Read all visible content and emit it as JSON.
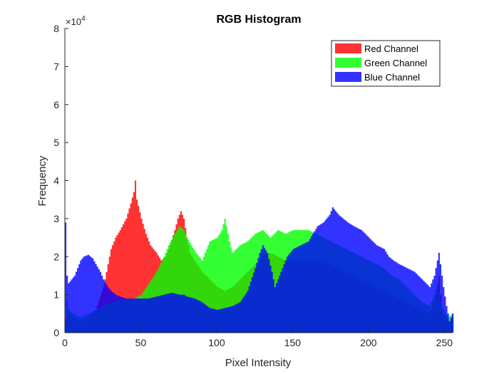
{
  "chart_data": {
    "type": "area",
    "title": "RGB Histogram",
    "xlabel": "Pixel Intensity",
    "ylabel": "Frequency",
    "xlim": [
      0,
      255
    ],
    "ylim": [
      0,
      80000
    ],
    "y_exponent_label": "×10^4",
    "y_exponent_base": "×10",
    "y_exponent_power": "4",
    "xticks": [
      0,
      50,
      100,
      150,
      200,
      250
    ],
    "yticks": [
      0,
      1,
      2,
      3,
      4,
      5,
      6,
      7,
      8
    ],
    "grid": false,
    "legend_position": "top-right",
    "series": [
      {
        "name": "Red Channel",
        "color": "#ff0000",
        "points": [
          [
            0,
            3000
          ],
          [
            1,
            8000
          ],
          [
            2,
            5000
          ],
          [
            5,
            4000
          ],
          [
            10,
            3000
          ],
          [
            15,
            4000
          ],
          [
            20,
            6000
          ],
          [
            25,
            12000
          ],
          [
            28,
            18000
          ],
          [
            30,
            22000
          ],
          [
            33,
            25000
          ],
          [
            36,
            27000
          ],
          [
            40,
            30000
          ],
          [
            43,
            34000
          ],
          [
            45,
            37000
          ],
          [
            46,
            40000
          ],
          [
            47,
            35000
          ],
          [
            50,
            30000
          ],
          [
            53,
            26000
          ],
          [
            56,
            23000
          ],
          [
            60,
            21000
          ],
          [
            63,
            19000
          ],
          [
            66,
            20000
          ],
          [
            69,
            23000
          ],
          [
            72,
            27000
          ],
          [
            74,
            30000
          ],
          [
            76,
            32000
          ],
          [
            78,
            30000
          ],
          [
            80,
            25000
          ],
          [
            82,
            21000
          ],
          [
            85,
            19000
          ],
          [
            90,
            16000
          ],
          [
            95,
            14000
          ],
          [
            100,
            12000
          ],
          [
            105,
            11000
          ],
          [
            110,
            12000
          ],
          [
            115,
            14000
          ],
          [
            120,
            16000
          ],
          [
            125,
            18000
          ],
          [
            130,
            20000
          ],
          [
            135,
            21000
          ],
          [
            140,
            20000
          ],
          [
            145,
            19000
          ],
          [
            150,
            19000
          ],
          [
            155,
            19000
          ],
          [
            160,
            19000
          ],
          [
            165,
            19000
          ],
          [
            170,
            19000
          ],
          [
            175,
            18000
          ],
          [
            180,
            17000
          ],
          [
            185,
            16000
          ],
          [
            190,
            15000
          ],
          [
            195,
            14000
          ],
          [
            200,
            13000
          ],
          [
            205,
            12000
          ],
          [
            210,
            11000
          ],
          [
            215,
            10000
          ],
          [
            220,
            9000
          ],
          [
            225,
            8000
          ],
          [
            230,
            7000
          ],
          [
            235,
            6000
          ],
          [
            240,
            5000
          ],
          [
            243,
            8000
          ],
          [
            245,
            12000
          ],
          [
            246,
            15000
          ],
          [
            247,
            10000
          ],
          [
            248,
            6000
          ],
          [
            250,
            4000
          ],
          [
            252,
            3000
          ],
          [
            255,
            4000
          ]
        ]
      },
      {
        "name": "Green Channel",
        "color": "#00ff00",
        "points": [
          [
            0,
            4000
          ],
          [
            1,
            9000
          ],
          [
            2,
            6000
          ],
          [
            5,
            5000
          ],
          [
            10,
            4000
          ],
          [
            15,
            5000
          ],
          [
            20,
            6000
          ],
          [
            25,
            7000
          ],
          [
            30,
            8000
          ],
          [
            35,
            8500
          ],
          [
            40,
            9000
          ],
          [
            45,
            9000
          ],
          [
            50,
            10000
          ],
          [
            55,
            13000
          ],
          [
            60,
            16000
          ],
          [
            65,
            20000
          ],
          [
            68,
            23000
          ],
          [
            72,
            26000
          ],
          [
            75,
            28000
          ],
          [
            78,
            27000
          ],
          [
            80,
            25000
          ],
          [
            83,
            23000
          ],
          [
            86,
            21000
          ],
          [
            90,
            19000
          ],
          [
            95,
            24000
          ],
          [
            100,
            25000
          ],
          [
            103,
            27000
          ],
          [
            105,
            30000
          ],
          [
            108,
            24000
          ],
          [
            110,
            21000
          ],
          [
            115,
            23000
          ],
          [
            120,
            24000
          ],
          [
            125,
            26000
          ],
          [
            130,
            27000
          ],
          [
            135,
            25000
          ],
          [
            140,
            27000
          ],
          [
            145,
            26000
          ],
          [
            150,
            27000
          ],
          [
            155,
            27000
          ],
          [
            160,
            27000
          ],
          [
            165,
            26000
          ],
          [
            170,
            25000
          ],
          [
            175,
            24000
          ],
          [
            180,
            23000
          ],
          [
            185,
            22000
          ],
          [
            190,
            21000
          ],
          [
            195,
            20000
          ],
          [
            200,
            19000
          ],
          [
            205,
            18000
          ],
          [
            210,
            17000
          ],
          [
            215,
            15000
          ],
          [
            220,
            14000
          ],
          [
            225,
            12000
          ],
          [
            230,
            10000
          ],
          [
            235,
            8000
          ],
          [
            240,
            7000
          ],
          [
            243,
            10000
          ],
          [
            245,
            13000
          ],
          [
            247,
            8000
          ],
          [
            250,
            5000
          ],
          [
            252,
            4000
          ],
          [
            255,
            5000
          ]
        ]
      },
      {
        "name": "Blue Channel",
        "color": "#0000ff",
        "points": [
          [
            0,
            29000
          ],
          [
            1,
            15000
          ],
          [
            2,
            13000
          ],
          [
            4,
            14000
          ],
          [
            6,
            15000
          ],
          [
            8,
            17000
          ],
          [
            10,
            19000
          ],
          [
            12,
            20000
          ],
          [
            15,
            20500
          ],
          [
            18,
            19500
          ],
          [
            20,
            18000
          ],
          [
            23,
            16000
          ],
          [
            25,
            14000
          ],
          [
            28,
            12000
          ],
          [
            30,
            11000
          ],
          [
            33,
            10000
          ],
          [
            36,
            9500
          ],
          [
            40,
            9000
          ],
          [
            45,
            9000
          ],
          [
            50,
            9000
          ],
          [
            55,
            9000
          ],
          [
            60,
            9500
          ],
          [
            65,
            10000
          ],
          [
            70,
            10500
          ],
          [
            75,
            10000
          ],
          [
            78,
            10000
          ],
          [
            80,
            9500
          ],
          [
            85,
            9000
          ],
          [
            90,
            8000
          ],
          [
            95,
            6500
          ],
          [
            100,
            6000
          ],
          [
            105,
            6500
          ],
          [
            110,
            7000
          ],
          [
            115,
            8000
          ],
          [
            120,
            11000
          ],
          [
            125,
            17000
          ],
          [
            128,
            21000
          ],
          [
            130,
            23000
          ],
          [
            133,
            21000
          ],
          [
            136,
            16000
          ],
          [
            138,
            12000
          ],
          [
            140,
            14000
          ],
          [
            143,
            17000
          ],
          [
            146,
            20000
          ],
          [
            150,
            22000
          ],
          [
            155,
            23000
          ],
          [
            160,
            24000
          ],
          [
            163,
            26000
          ],
          [
            166,
            28000
          ],
          [
            170,
            29000
          ],
          [
            174,
            31000
          ],
          [
            176,
            33000
          ],
          [
            178,
            32000
          ],
          [
            180,
            31000
          ],
          [
            183,
            30000
          ],
          [
            186,
            29000
          ],
          [
            190,
            28000
          ],
          [
            195,
            27000
          ],
          [
            200,
            25000
          ],
          [
            205,
            23000
          ],
          [
            210,
            22000
          ],
          [
            213,
            20000
          ],
          [
            216,
            19000
          ],
          [
            220,
            18000
          ],
          [
            225,
            17000
          ],
          [
            230,
            16000
          ],
          [
            235,
            14000
          ],
          [
            240,
            12000
          ],
          [
            243,
            15000
          ],
          [
            245,
            19000
          ],
          [
            246,
            21000
          ],
          [
            247,
            18000
          ],
          [
            249,
            12000
          ],
          [
            251,
            7000
          ],
          [
            253,
            3000
          ],
          [
            255,
            5000
          ]
        ]
      }
    ]
  }
}
